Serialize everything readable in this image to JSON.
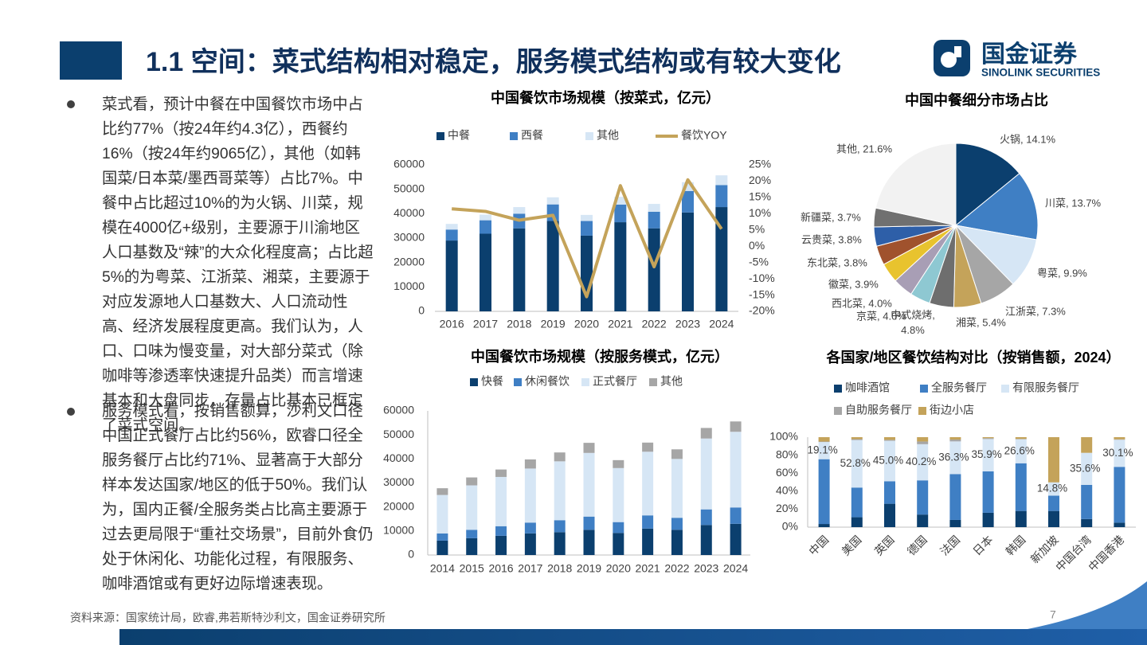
{
  "header": {
    "title": "1.1 空间：菜式结构相对稳定，服务模式结构或有较大变化",
    "logo_name": "国金证券",
    "logo_sub": "SINOLINK SECURITIES"
  },
  "bullets": [
    "菜式看，预计中餐在中国餐饮市场中占比约77%（按24年约4.3亿），西餐约16%（按24年约9065亿），其他（如韩国菜/日本菜/墨西哥菜等）占比7%。中餐中占比超过10%的为火锅、川菜，规模在4000亿+级别，主要源于川渝地区人口基数及“辣”的大众化程度高；占比超5%的为粤菜、江浙菜、湘菜，主要源于对应发源地人口基数大、人口流动性高、经济发展程度更高。我们认为，人口、口味为慢变量，对大部分菜式（除咖啡等渗透率快速提升品类）而言增速基本和大盘同步，存量占比基本已框定了菜式空间。",
    "服务模式看，按销售额算，沙利文口径中国正式餐厅占比约56%，欧睿口径全服务餐厅占比约71%、显著高于大部分样本发达国家/地区的低于50%。我们认为，国内正餐/全服务类占比高主要源于过去更局限于“重社交场景”，目前外食仍处于休闲化、功能化过程，有限服务、咖啡酒馆或有更好边际增速表现。"
  ],
  "source": "资料来源：国家统计局，欧睿,弗若斯特沙利文，国金证券研究所",
  "page_number": "7",
  "chart_data": [
    {
      "type": "bar",
      "stacked": true,
      "title": "中国餐饮市场规模（按菜式，亿元）",
      "categories": [
        "2016",
        "2017",
        "2018",
        "2019",
        "2020",
        "2021",
        "2022",
        "2023",
        "2024"
      ],
      "series": [
        {
          "name": "中餐",
          "color": "#0b3f6e",
          "values": [
            29000,
            31800,
            34000,
            37000,
            31000,
            36500,
            34000,
            40500,
            42700
          ]
        },
        {
          "name": "西餐",
          "color": "#3f7fc4",
          "values": [
            4500,
            5500,
            6000,
            6800,
            6000,
            7200,
            6800,
            8800,
            9000
          ]
        },
        {
          "name": "其他",
          "color": "#d6e6f5",
          "values": [
            2300,
            2300,
            2700,
            2900,
            2500,
            3200,
            3200,
            3600,
            4000
          ]
        },
        {
          "name": "餐饮YOY",
          "color": "#c4a35a",
          "axis": "y2",
          "values": [
            11.5,
            10.7,
            8,
            9.5,
            -15.5,
            18.6,
            -6.3,
            20.4,
            5.3
          ]
        }
      ],
      "ylim": [
        0,
        60000
      ],
      "yticks": [
        0,
        10000,
        20000,
        30000,
        40000,
        50000,
        60000
      ],
      "y2lim": [
        -20,
        25
      ],
      "y2ticks": [
        {
          "value": -20,
          "label": "-20%"
        },
        {
          "value": -15,
          "label": "-15%"
        },
        {
          "value": -10,
          "label": "-10%"
        },
        {
          "value": -5,
          "label": "-5%"
        },
        {
          "value": 0,
          "label": "0%"
        },
        {
          "value": 5,
          "label": "5%"
        },
        {
          "value": 10,
          "label": "10%"
        },
        {
          "value": 15,
          "label": "15%"
        },
        {
          "value": 20,
          "label": "20%"
        },
        {
          "value": 25,
          "label": "25%"
        }
      ],
      "grid": false
    },
    {
      "type": "pie",
      "title": "中国中餐细分市场占比",
      "labels": [
        "火锅, 14.1%",
        "川菜, 13.7%",
        "粤菜, 9.9%",
        "江浙菜, 7.3%",
        "湘菜, 5.4%",
        "中式烧烤, 4.8%",
        "京菜, 4.0%",
        "西北菜, 4.0%",
        "徽菜, 3.9%",
        "东北菜, 3.8%",
        "云贵菜, 3.8%",
        "新疆菜, 3.7%",
        "其他, 21.6%"
      ],
      "values": [
        14.1,
        13.7,
        9.9,
        7.3,
        5.4,
        4.8,
        4.0,
        4.0,
        3.9,
        3.8,
        3.8,
        3.7,
        21.6
      ],
      "colors": [
        "#0b3f6e",
        "#3f7fc4",
        "#d6e6f5",
        "#a6a6a6",
        "#c4a35a",
        "#6e6e6e",
        "#8ec8d2",
        "#a89eb5",
        "#e8c32e",
        "#a0522d",
        "#2e5fa8",
        "#707070",
        "#f2f2f2"
      ]
    },
    {
      "type": "bar",
      "stacked": true,
      "title": "中国餐饮市场规模（按服务模式，亿元）",
      "categories": [
        "2014",
        "2015",
        "2016",
        "2017",
        "2018",
        "2019",
        "2020",
        "2021",
        "2022",
        "2023",
        "2024"
      ],
      "series": [
        {
          "name": "快餐",
          "color": "#0b3f6e",
          "values": [
            6000,
            7000,
            8000,
            9000,
            9500,
            10500,
            9200,
            11000,
            10500,
            12500,
            13000
          ]
        },
        {
          "name": "休闲餐饮",
          "color": "#3f7fc4",
          "values": [
            3000,
            3500,
            4000,
            4500,
            5000,
            5500,
            4500,
            5500,
            5000,
            6500,
            6800
          ]
        },
        {
          "name": "正式餐厅",
          "color": "#d6e6f5",
          "values": [
            16000,
            18500,
            20500,
            22500,
            24500,
            26500,
            22500,
            26500,
            24500,
            29500,
            31500
          ]
        },
        {
          "name": "其他",
          "color": "#a6a6a6",
          "values": [
            2800,
            3300,
            3100,
            3800,
            3700,
            4200,
            3300,
            3800,
            4000,
            4400,
            4300
          ]
        }
      ],
      "ylim": [
        0,
        60000
      ],
      "yticks": [
        0,
        10000,
        20000,
        30000,
        40000,
        50000,
        60000
      ],
      "grid": false
    },
    {
      "type": "bar",
      "stacked": true,
      "title": "各国家/地区餐饮结构对比（按销售额，2024）",
      "categories": [
        "中国",
        "美国",
        "英国",
        "德国",
        "法国",
        "日本",
        "韩国",
        "新加坡",
        "中国台湾",
        "中国香港"
      ],
      "series": [
        {
          "name": "咖啡酒馆",
          "color": "#0b3f6e",
          "values": [
            3.5,
            11,
            26,
            14,
            8,
            16,
            18,
            18,
            9,
            5
          ]
        },
        {
          "name": "全服务餐厅",
          "color": "#3f7fc4",
          "values": [
            72,
            33,
            25,
            38,
            51,
            46,
            53,
            17,
            38,
            62
          ]
        },
        {
          "name": "有限服务餐厅",
          "color": "#d6e6f5",
          "values": [
            19.1,
            52.8,
            45.0,
            40.2,
            36.3,
            35.9,
            26.6,
            14.8,
            35.6,
            30.1
          ],
          "value_labels": [
            "19.1%",
            "52.8%",
            "45.0%",
            "40.2%",
            "36.3%",
            "35.9%",
            "26.6%",
            "14.8%",
            "35.6%",
            "30.1%"
          ]
        },
        {
          "name": "自助服务餐厅",
          "color": "#a6a6a6",
          "values": [
            0.5,
            1,
            1,
            3,
            2,
            1,
            0.5,
            0,
            0,
            0.5
          ]
        },
        {
          "name": "街边小店",
          "color": "#c4a35a",
          "values": [
            4.9,
            2.2,
            3,
            4.8,
            2.7,
            1.1,
            1.9,
            50.2,
            17.4,
            2.4
          ]
        }
      ],
      "ylim": [
        0,
        100
      ],
      "yticks": [
        {
          "value": 0,
          "label": "0%"
        },
        {
          "value": 20,
          "label": "20%"
        },
        {
          "value": 40,
          "label": "40%"
        },
        {
          "value": 60,
          "label": "60%"
        },
        {
          "value": 80,
          "label": "80%"
        },
        {
          "value": 100,
          "label": "100%"
        }
      ],
      "grid": false
    }
  ]
}
